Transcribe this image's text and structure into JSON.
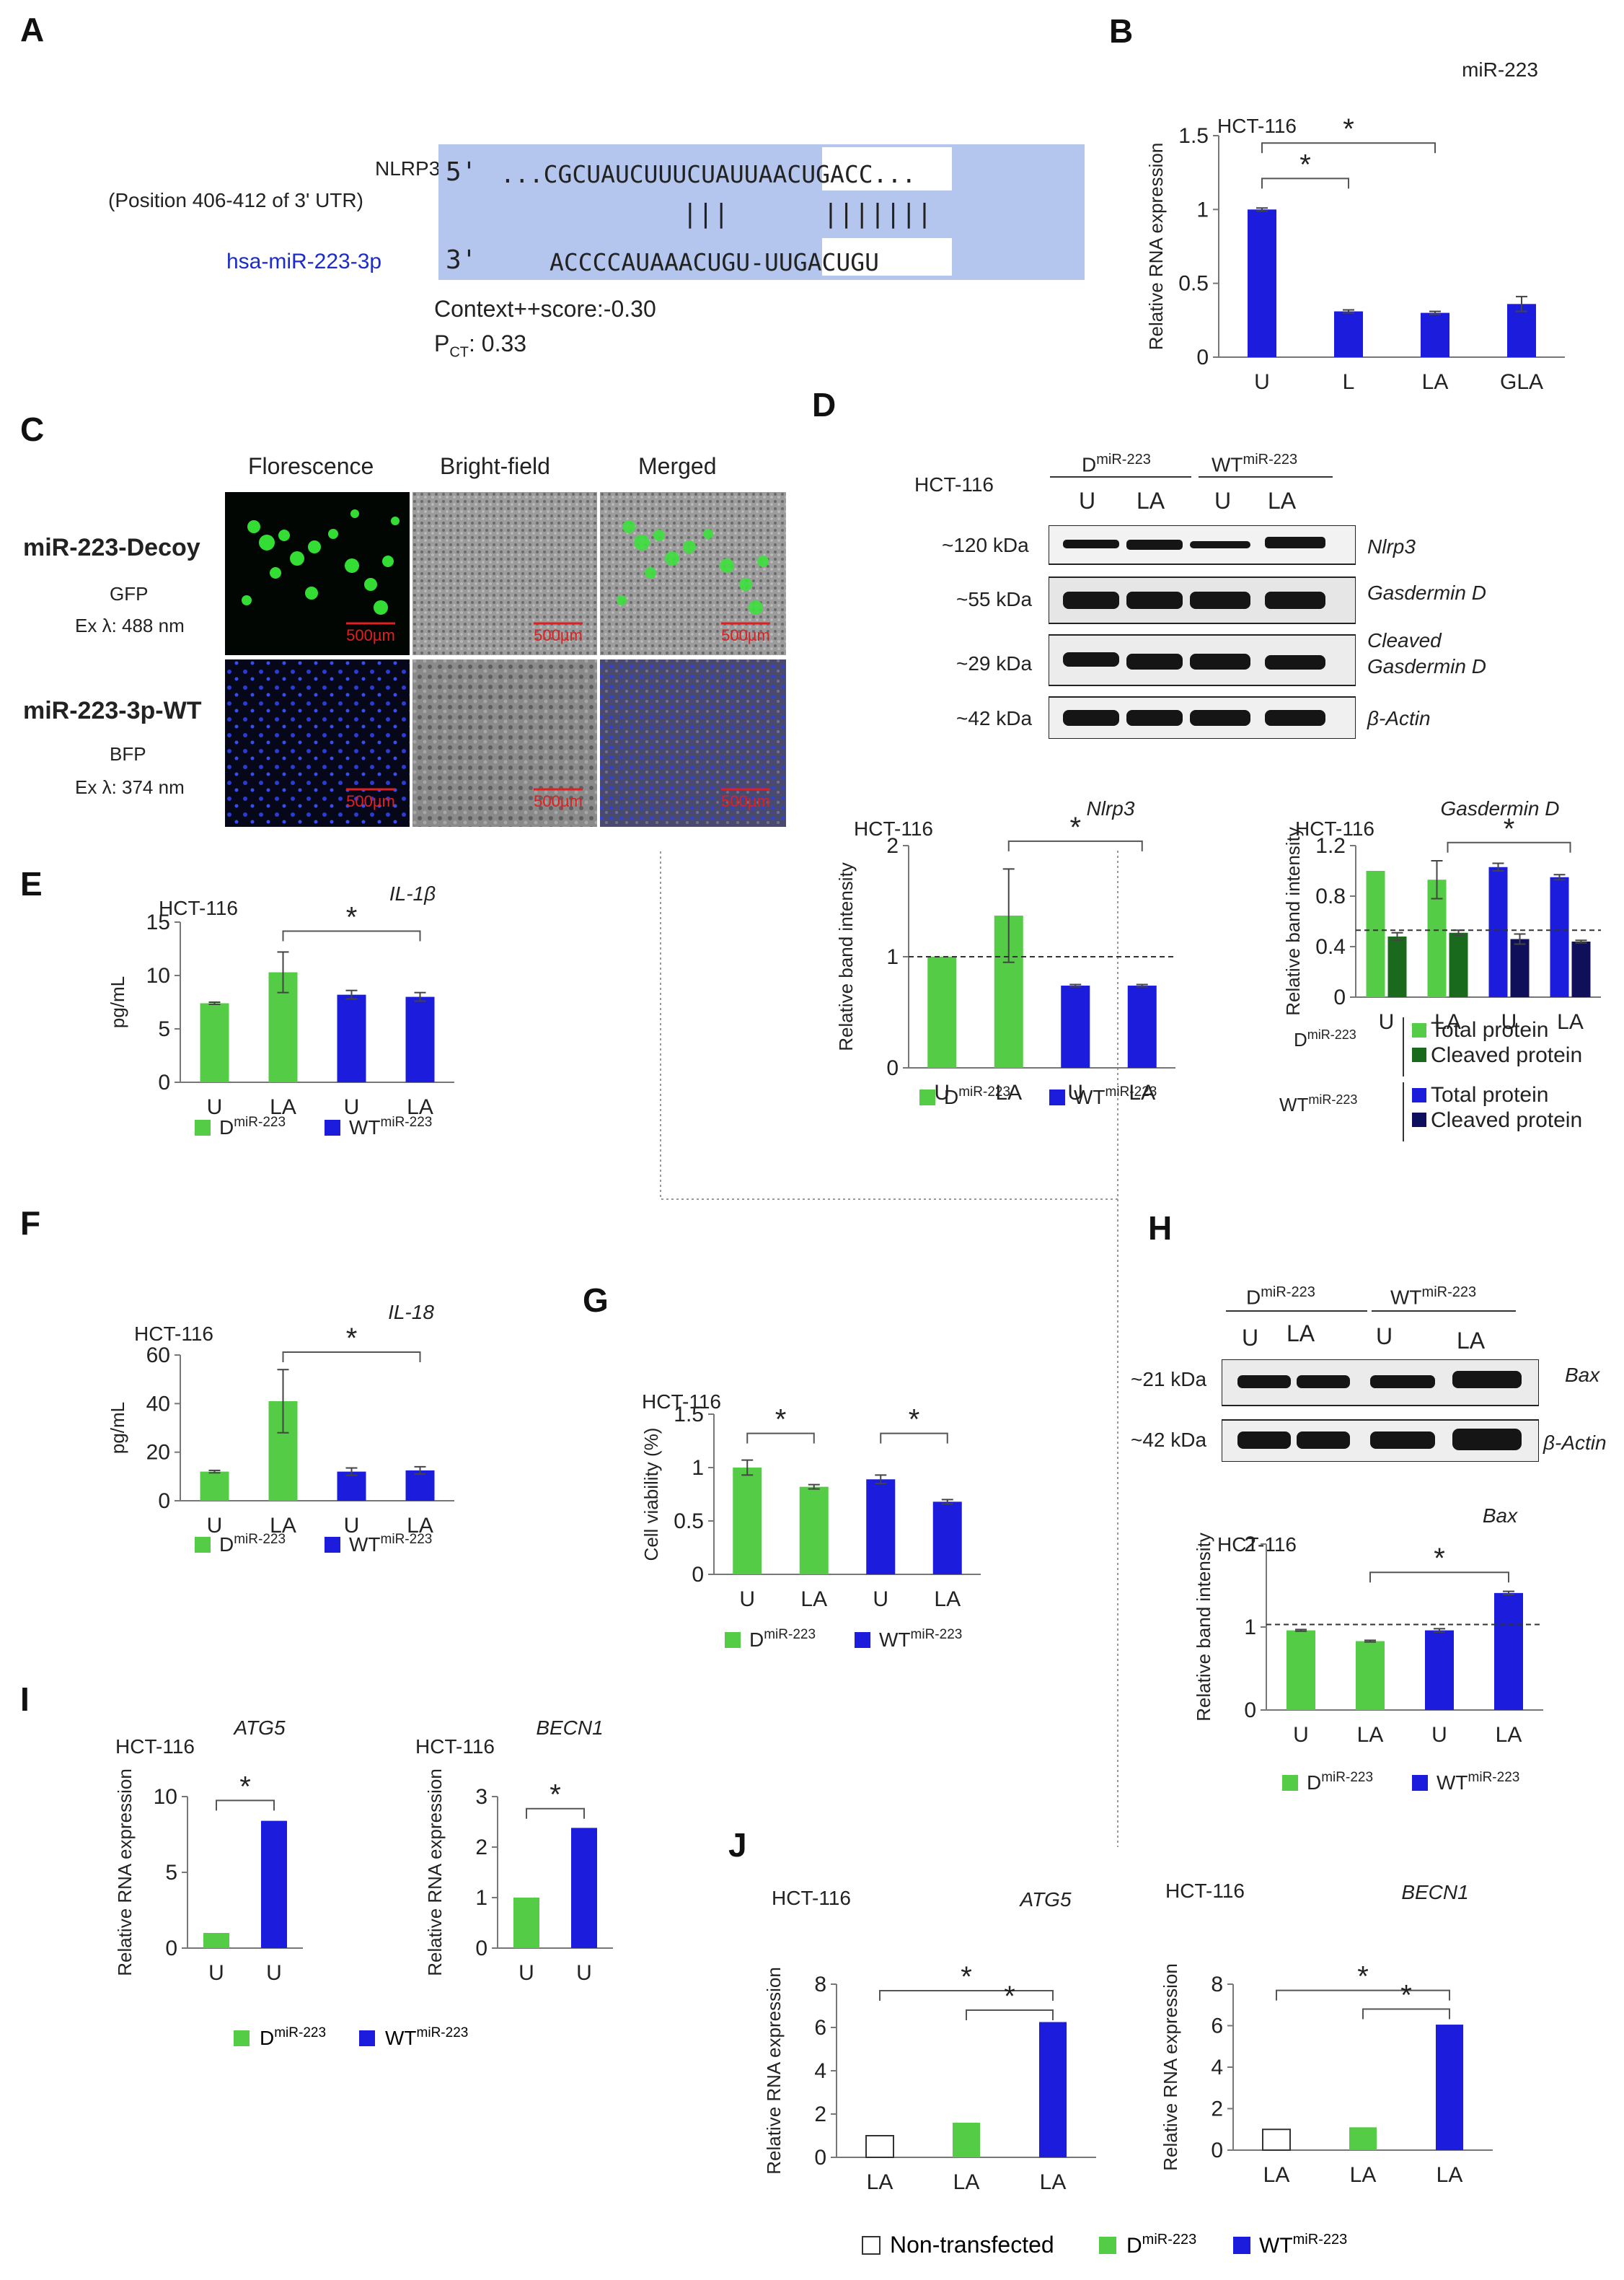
{
  "colors": {
    "green": "#55cc45",
    "darkgreen": "#1a6a1e",
    "blue": "#1c1cdc",
    "navy": "#10105a",
    "seq_highlight": "#b4c6ee",
    "scale_bar": "#e02020"
  },
  "panel_letters": [
    "A",
    "B",
    "C",
    "D",
    "E",
    "F",
    "G",
    "H",
    "I",
    "J"
  ],
  "panel_a": {
    "target_name": "NLRP3",
    "target_position": "(Position 406-412 of 3' UTR)",
    "mirna_name": "hsa-miR-223-3p",
    "target_prime": "5'",
    "target_seq_left": "...CGCUAUCUUUCUAUU",
    "target_seq_seed": "AACUGACC",
    "target_seq_right": "...",
    "pairing": "|||      |||||||",
    "mirna_prime": "3'",
    "mirna_seq_left": "ACCCCAUAAACUGU-",
    "mirna_seq_seed": "UUGACUGU",
    "context_score": "Context++score:-0.30",
    "pct_prefix": "P",
    "pct_sub": "CT",
    "pct_value": ": 0.33"
  },
  "panel_c": {
    "col_headers": [
      "Florescence",
      "Bright-field",
      "Merged"
    ],
    "rows": [
      {
        "name": "miR-223-Decoy",
        "reporter": "GFP",
        "excitation": "Ex λ: 488 nm"
      },
      {
        "name": "miR-223-3p-WT",
        "reporter": "BFP",
        "excitation": "Ex λ: 374 nm"
      }
    ],
    "scale_bar_label": "500µm"
  },
  "panel_d_blot": {
    "cell_line": "HCT-116",
    "group1": "D",
    "group2": "WT",
    "group_sup": "miR-223",
    "lanes": [
      "U",
      "LA",
      "U",
      "LA"
    ],
    "bands": [
      {
        "kda": "~120 kDa",
        "protein": "Nlrp3"
      },
      {
        "kda": "~55 kDa",
        "protein": "Gasdermin D"
      },
      {
        "kda": "~29 kDa",
        "protein": "Cleaved Gasdermin D"
      },
      {
        "kda": "~42 kDa",
        "protein": "β-Actin"
      }
    ]
  },
  "panel_h_blot": {
    "group1": "D",
    "group2": "WT",
    "group_sup": "miR-223",
    "lanes": [
      "U",
      "LA",
      "U",
      "LA"
    ],
    "bands": [
      {
        "kda": "~21 kDa",
        "protein": "Bax"
      },
      {
        "kda": "~42 kDa",
        "protein": "β-Actin"
      }
    ]
  },
  "legend_text": {
    "d_main": "D",
    "wt_main": "WT",
    "sup": "miR-223",
    "non_transfected": "Non-transfected",
    "total_protein": "Total protein",
    "cleaved_protein": "Cleaved protein"
  },
  "chart_data": [
    {
      "id": "B",
      "type": "bar",
      "title": "miR-223",
      "cell_line": "HCT-116",
      "ylabel": "Relative RNA expression",
      "categories": [
        "U",
        "L",
        "LA",
        "GLA"
      ],
      "series": [
        {
          "values": [
            1.0,
            0.31,
            0.3,
            0.36
          ],
          "errors": [
            0.01,
            0.01,
            0.01,
            0.05
          ],
          "colors": [
            "blue",
            "blue",
            "blue",
            "blue"
          ]
        }
      ],
      "ylim": [
        0,
        1.5
      ],
      "yticks": [
        "0",
        "0.5",
        "1",
        "1.5"
      ],
      "significance": [
        {
          "from": 0,
          "to": 1,
          "label": "*"
        },
        {
          "from": 0,
          "to": 2,
          "label": "*"
        }
      ],
      "legend": "none"
    },
    {
      "id": "D1",
      "type": "bar",
      "title": "Nlrp3",
      "cell_line": "HCT-116",
      "ylabel": "Relative band intensity",
      "categories": [
        "U",
        "LA",
        "U",
        "LA"
      ],
      "series": [
        {
          "values": [
            1.0,
            1.37,
            0.74,
            0.74
          ],
          "errors": [
            0.0,
            0.42,
            0.01,
            0.01
          ],
          "colors": [
            "green",
            "green",
            "blue",
            "blue"
          ]
        }
      ],
      "ylim": [
        0,
        2
      ],
      "yticks": [
        "0",
        "1",
        "2"
      ],
      "reference_line": 1,
      "significance": [
        {
          "from": 1,
          "to": 3,
          "label": "*"
        }
      ],
      "legend": "bottom"
    },
    {
      "id": "D2",
      "type": "bar",
      "title": "Gasdermin D",
      "cell_line": "HCT-116",
      "ylabel": "Relative band intensity",
      "categories": [
        "U",
        "LA",
        "U",
        "LA"
      ],
      "series": [
        {
          "name": "Total protein",
          "values": [
            1.0,
            0.93,
            1.03,
            0.95
          ],
          "errors": [
            0.0,
            0.15,
            0.03,
            0.02
          ],
          "colors": [
            "green",
            "green",
            "blue",
            "blue"
          ]
        },
        {
          "name": "Cleaved protein",
          "values": [
            0.48,
            0.51,
            0.46,
            0.44
          ],
          "errors": [
            0.03,
            0.02,
            0.04,
            0.01
          ],
          "colors": [
            "darkgreen",
            "darkgreen",
            "navy",
            "navy"
          ]
        }
      ],
      "ylim": [
        0,
        1.2
      ],
      "yticks": [
        "0",
        "0.4",
        "0.8",
        "1.2"
      ],
      "reference_line": 0.53,
      "significance": [
        {
          "from": 1,
          "to": 3,
          "label": "*"
        }
      ],
      "legend": "bottom"
    },
    {
      "id": "E",
      "type": "bar",
      "title": "IL-1β",
      "cell_line": "HCT-116",
      "ylabel": "pg/mL",
      "categories": [
        "U",
        "LA",
        "U",
        "LA"
      ],
      "series": [
        {
          "values": [
            7.4,
            10.3,
            8.2,
            8.0
          ],
          "errors": [
            0.1,
            1.9,
            0.4,
            0.4
          ],
          "colors": [
            "green",
            "green",
            "blue",
            "blue"
          ]
        }
      ],
      "ylim": [
        0,
        15
      ],
      "yticks": [
        "0",
        "5",
        "10",
        "15"
      ],
      "significance": [
        {
          "from": 1,
          "to": 3,
          "label": "*"
        }
      ],
      "legend": "bottom"
    },
    {
      "id": "F",
      "type": "bar",
      "title": "IL-18",
      "cell_line": "HCT-116",
      "ylabel": "pg/mL",
      "categories": [
        "U",
        "LA",
        "U",
        "LA"
      ],
      "series": [
        {
          "values": [
            12,
            41,
            12,
            12.5
          ],
          "errors": [
            0.5,
            13,
            1.5,
            1.5
          ],
          "colors": [
            "green",
            "green",
            "blue",
            "blue"
          ]
        }
      ],
      "ylim": [
        0,
        60
      ],
      "yticks": [
        "0",
        "20",
        "40",
        "60"
      ],
      "significance": [
        {
          "from": 1,
          "to": 3,
          "label": "*"
        }
      ],
      "legend": "bottom"
    },
    {
      "id": "G",
      "type": "bar",
      "title": "",
      "cell_line": "HCT-116",
      "ylabel": "Cell viability (%)",
      "categories": [
        "U",
        "LA",
        "U",
        "LA"
      ],
      "series": [
        {
          "values": [
            1.0,
            0.82,
            0.89,
            0.68
          ],
          "errors": [
            0.07,
            0.02,
            0.04,
            0.02
          ],
          "colors": [
            "green",
            "green",
            "blue",
            "blue"
          ]
        }
      ],
      "ylim": [
        0,
        1.5
      ],
      "yticks": [
        "0",
        "0.5",
        "1",
        "1.5"
      ],
      "significance": [
        {
          "from": 0,
          "to": 1,
          "label": "*"
        },
        {
          "from": 2,
          "to": 3,
          "label": "*"
        }
      ],
      "legend": "bottom"
    },
    {
      "id": "H",
      "type": "bar",
      "title": "Bax",
      "cell_line": "HCT-116",
      "ylabel": "Relative band intensity",
      "categories": [
        "U",
        "LA",
        "U",
        "LA"
      ],
      "series": [
        {
          "values": [
            0.96,
            0.83,
            0.96,
            1.41
          ],
          "errors": [
            0.01,
            0.01,
            0.02,
            0.02
          ],
          "colors": [
            "green",
            "green",
            "blue",
            "blue"
          ]
        }
      ],
      "ylim": [
        0,
        2
      ],
      "yticks": [
        "0",
        "1",
        "2"
      ],
      "reference_line": 1.03,
      "significance": [
        {
          "from": 1,
          "to": 3,
          "label": "*"
        }
      ],
      "legend": "bottom"
    },
    {
      "id": "I1",
      "type": "bar",
      "title": "ATG5",
      "cell_line": "HCT-116",
      "ylabel": "Relative RNA expression",
      "categories": [
        "U",
        "U"
      ],
      "series": [
        {
          "values": [
            1.0,
            8.4
          ],
          "errors": [
            0,
            0
          ],
          "colors": [
            "green",
            "blue"
          ]
        }
      ],
      "ylim": [
        0,
        10
      ],
      "yticks": [
        "0",
        "5",
        "10"
      ],
      "significance": [
        {
          "from": 0,
          "to": 1,
          "label": "*"
        }
      ],
      "legend": "bottom"
    },
    {
      "id": "I2",
      "type": "bar",
      "title": "BECN1",
      "cell_line": "HCT-116",
      "ylabel": "Relative RNA expression",
      "categories": [
        "U",
        "U"
      ],
      "series": [
        {
          "values": [
            1.0,
            2.38
          ],
          "errors": [
            0,
            0
          ],
          "colors": [
            "green",
            "blue"
          ]
        }
      ],
      "ylim": [
        0,
        3
      ],
      "yticks": [
        "0",
        "1",
        "2",
        "3"
      ],
      "significance": [
        {
          "from": 0,
          "to": 1,
          "label": "*"
        }
      ],
      "legend": "bottom"
    },
    {
      "id": "J1",
      "type": "bar",
      "title": "ATG5",
      "cell_line": "HCT-116",
      "ylabel": "Relative RNA expression",
      "categories": [
        "LA",
        "LA",
        "LA"
      ],
      "series": [
        {
          "values": [
            1.0,
            1.6,
            6.25
          ],
          "errors": [
            0,
            0,
            0
          ],
          "colors": [
            "white",
            "green",
            "blue"
          ]
        }
      ],
      "ylim": [
        0,
        8
      ],
      "yticks": [
        "0",
        "2",
        "4",
        "6",
        "8"
      ],
      "significance": [
        {
          "from": 0,
          "to": 2,
          "label": "*"
        },
        {
          "from": 1,
          "to": 2,
          "label": "*"
        }
      ],
      "legend": "bottom"
    },
    {
      "id": "J2",
      "type": "bar",
      "title": "BECN1",
      "cell_line": "HCT-116",
      "ylabel": "Relative RNA expression",
      "categories": [
        "LA",
        "LA",
        "LA"
      ],
      "series": [
        {
          "values": [
            1.0,
            1.1,
            6.05
          ],
          "errors": [
            0,
            0,
            0
          ],
          "colors": [
            "white",
            "green",
            "blue"
          ]
        }
      ],
      "ylim": [
        0,
        8
      ],
      "yticks": [
        "0",
        "2",
        "4",
        "6",
        "8"
      ],
      "significance": [
        {
          "from": 0,
          "to": 2,
          "label": "*"
        },
        {
          "from": 1,
          "to": 2,
          "label": "*"
        }
      ],
      "legend": "bottom"
    }
  ]
}
